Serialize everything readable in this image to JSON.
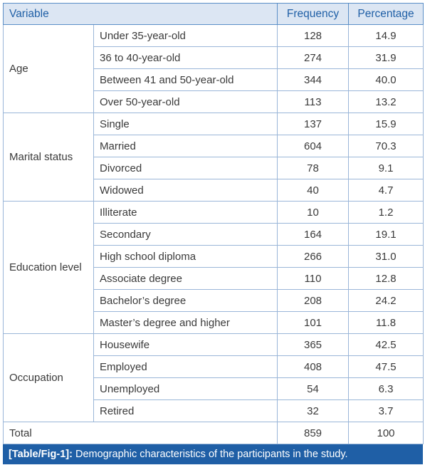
{
  "header": {
    "variable": "Variable",
    "frequency": "Frequency",
    "percentage": "Percentage"
  },
  "groups": [
    {
      "name": "Age",
      "rows": [
        {
          "label": "Under 35-year-old",
          "frequency": "128",
          "percentage": "14.9"
        },
        {
          "label": "36 to 40-year-old",
          "frequency": "274",
          "percentage": "31.9"
        },
        {
          "label": "Between 41 and 50-year-old",
          "frequency": "344",
          "percentage": "40.0"
        },
        {
          "label": "Over 50-year-old",
          "frequency": "113",
          "percentage": "13.2"
        }
      ]
    },
    {
      "name": "Marital status",
      "rows": [
        {
          "label": "Single",
          "frequency": "137",
          "percentage": "15.9"
        },
        {
          "label": "Married",
          "frequency": "604",
          "percentage": "70.3"
        },
        {
          "label": "Divorced",
          "frequency": "78",
          "percentage": "9.1"
        },
        {
          "label": "Widowed",
          "frequency": "40",
          "percentage": "4.7"
        }
      ]
    },
    {
      "name": "Education level",
      "rows": [
        {
          "label": "Illiterate",
          "frequency": "10",
          "percentage": "1.2"
        },
        {
          "label": "Secondary",
          "frequency": "164",
          "percentage": "19.1"
        },
        {
          "label": "High school diploma",
          "frequency": "266",
          "percentage": "31.0"
        },
        {
          "label": "Associate degree",
          "frequency": "110",
          "percentage": "12.8"
        },
        {
          "label": "Bachelor’s degree",
          "frequency": "208",
          "percentage": "24.2"
        },
        {
          "label": "Master’s degree and higher",
          "frequency": "101",
          "percentage": "11.8"
        }
      ]
    },
    {
      "name": "Occupation",
      "rows": [
        {
          "label": "Housewife",
          "frequency": "365",
          "percentage": "42.5"
        },
        {
          "label": "Employed",
          "frequency": "408",
          "percentage": "47.5"
        },
        {
          "label": "Unemployed",
          "frequency": "54",
          "percentage": "6.3"
        },
        {
          "label": "Retired",
          "frequency": "32",
          "percentage": "3.7"
        }
      ]
    }
  ],
  "total": {
    "label": "Total",
    "frequency": "859",
    "percentage": "100"
  },
  "caption": {
    "tag": "[Table/Fig-1]:",
    "text": " Demographic characteristics of the participants in the study."
  },
  "colors": {
    "header_bg": "#dce6f3",
    "accent": "#1f5fa6",
    "border": "#9ab6d8"
  }
}
